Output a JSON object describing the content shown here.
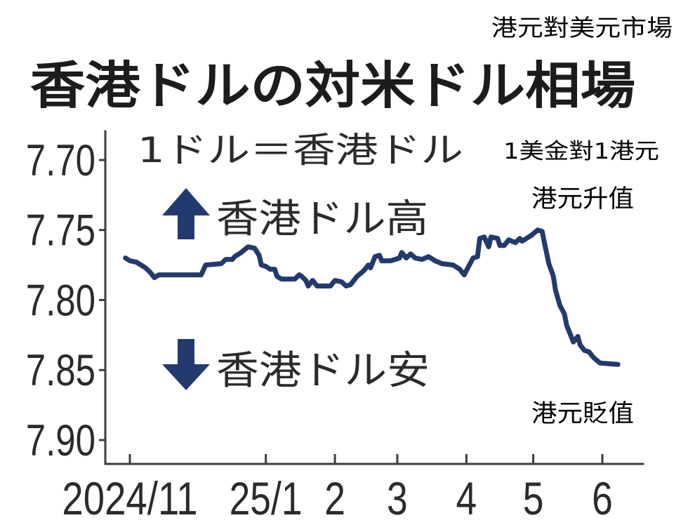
{
  "annotations": {
    "header_translation": "港元對美元市場",
    "unit_translation": "1美金對1港元",
    "up_translation": "港元升值",
    "down_translation": "港元貶值"
  },
  "chart_data": {
    "type": "line",
    "title": "香港ドルの対米ドル相場",
    "subtitle": "1ドル＝香港ドル",
    "xlabel": "",
    "ylabel": "",
    "ylim": [
      7.7,
      7.9
    ],
    "y_axis_reversed": true,
    "grid": false,
    "y_ticks": [
      {
        "value": 7.7,
        "label": "7.70"
      },
      {
        "value": 7.75,
        "label": "7.75"
      },
      {
        "value": 7.8,
        "label": "7.80"
      },
      {
        "value": 7.85,
        "label": "7.85"
      },
      {
        "value": 7.9,
        "label": "7.90"
      }
    ],
    "x_ticks": [
      {
        "date": "2024-11-01",
        "label": "2024/11"
      },
      {
        "date": "2025-01-01",
        "label": "25/1"
      },
      {
        "date": "2025-02-01",
        "label": "2"
      },
      {
        "date": "2025-03-01",
        "label": "3"
      },
      {
        "date": "2025-04-01",
        "label": "4"
      },
      {
        "date": "2025-05-01",
        "label": "5"
      },
      {
        "date": "2025-06-01",
        "label": "6"
      }
    ],
    "direction_labels": {
      "up": {
        "icon": "up-arrow-icon",
        "label": "香港ドル高"
      },
      "down": {
        "icon": "down-arrow-icon",
        "label": "香港ドル安"
      }
    },
    "colors": {
      "line": "#223a6e",
      "arrows": "#223a6e",
      "axis": "#3d3d3d"
    },
    "series": [
      {
        "x": [
          "2024-10-30",
          "2024-11-01",
          "2024-11-04",
          "2024-11-06",
          "2024-11-08",
          "2024-11-10",
          "2024-11-12",
          "2024-11-14",
          "2024-11-18",
          "2024-12-03",
          "2024-12-05",
          "2024-12-12",
          "2024-12-14",
          "2024-12-17",
          "2024-12-18",
          "2024-12-21",
          "2024-12-24",
          "2024-12-27",
          "2024-12-29",
          "2024-12-30",
          "2025-01-01",
          "2025-01-03",
          "2025-01-05",
          "2025-01-06",
          "2025-01-08",
          "2025-01-14",
          "2025-01-16",
          "2025-01-17",
          "2025-01-19",
          "2025-01-20",
          "2025-01-22",
          "2025-01-24",
          "2025-01-30",
          "2025-02-01",
          "2025-02-04",
          "2025-02-06",
          "2025-02-08",
          "2025-02-11",
          "2025-02-14",
          "2025-02-16",
          "2025-02-17",
          "2025-02-19",
          "2025-02-21",
          "2025-02-22",
          "2025-02-26",
          "2025-03-02",
          "2025-03-03",
          "2025-03-05",
          "2025-03-07",
          "2025-03-09",
          "2025-03-12",
          "2025-03-15",
          "2025-03-18",
          "2025-03-21",
          "2025-03-26",
          "2025-03-29",
          "2025-03-31",
          "2025-04-02",
          "2025-04-04",
          "2025-04-06",
          "2025-04-07",
          "2025-04-09",
          "2025-04-11",
          "2025-04-12",
          "2025-04-15",
          "2025-04-16",
          "2025-04-18",
          "2025-04-20",
          "2025-04-23",
          "2025-04-25",
          "2025-04-26",
          "2025-04-29",
          "2025-04-30",
          "2025-05-03",
          "2025-05-05",
          "2025-05-06",
          "2025-05-08",
          "2025-05-10",
          "2025-05-11",
          "2025-05-13",
          "2025-05-15",
          "2025-05-16",
          "2025-05-18",
          "2025-05-19",
          "2025-05-21",
          "2025-05-22",
          "2025-05-24",
          "2025-05-26",
          "2025-05-28",
          "2025-05-31",
          "2025-06-08"
        ],
        "y": [
          7.77,
          7.772,
          7.773,
          7.775,
          7.777,
          7.78,
          7.784,
          7.782,
          7.782,
          7.782,
          7.775,
          7.774,
          7.771,
          7.771,
          7.769,
          7.766,
          7.762,
          7.763,
          7.768,
          7.775,
          7.776,
          7.778,
          7.778,
          7.783,
          7.785,
          7.785,
          7.782,
          7.783,
          7.786,
          7.79,
          7.786,
          7.79,
          7.79,
          7.786,
          7.787,
          7.79,
          7.789,
          7.783,
          7.779,
          7.775,
          7.777,
          7.769,
          7.768,
          7.772,
          7.772,
          7.77,
          7.766,
          7.77,
          7.767,
          7.77,
          7.771,
          7.769,
          7.772,
          7.774,
          7.775,
          7.778,
          7.782,
          7.776,
          7.77,
          7.769,
          7.756,
          7.755,
          7.762,
          7.755,
          7.756,
          7.761,
          7.761,
          7.757,
          7.759,
          7.756,
          7.758,
          7.755,
          7.754,
          7.75,
          7.751,
          7.759,
          7.774,
          7.783,
          7.793,
          7.804,
          7.81,
          7.818,
          7.826,
          7.83,
          7.826,
          7.832,
          7.836,
          7.837,
          7.841,
          7.845,
          7.846
        ]
      }
    ]
  }
}
